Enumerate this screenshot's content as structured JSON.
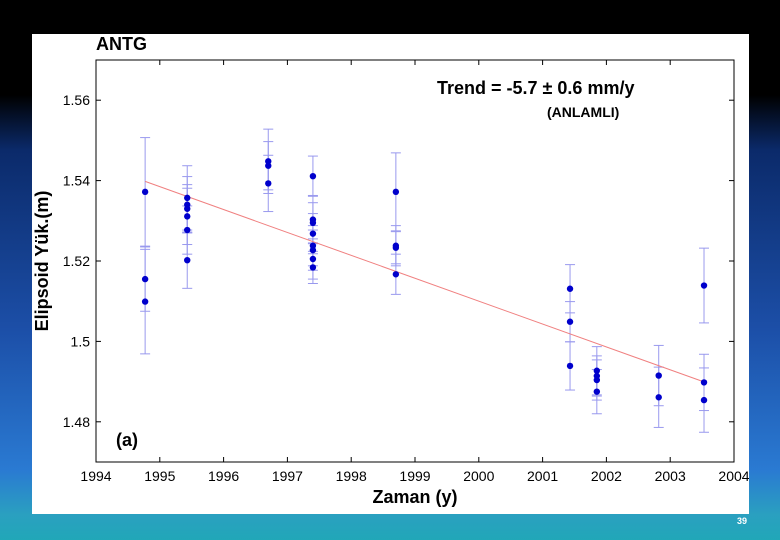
{
  "slide": {
    "page_number": "39",
    "colors": {
      "data_points": "#0000cc",
      "error_bars": "#9999ee",
      "trend_line": "#f08080",
      "axis": "#000000"
    }
  },
  "chart_data": {
    "type": "scatter",
    "title": "ANTG",
    "xlabel": "Zaman (y)",
    "ylabel": "Elipsoid Yük.(m)",
    "panel_label": "(a)",
    "annotation": "Trend = -5.7 ± 0.6 mm/y",
    "annotation_sub": "(ANLAMLI)",
    "xlim": [
      1994,
      2004
    ],
    "ylim": [
      1.47,
      1.57
    ],
    "xticks": [
      1994,
      1995,
      1996,
      1997,
      1998,
      1999,
      2000,
      2001,
      2002,
      2003,
      2004
    ],
    "xtick_labels": [
      "1994",
      "1995",
      "1996",
      "1997",
      "1998",
      "1999",
      "2000",
      "2001",
      "2002",
      "2003",
      "2004"
    ],
    "yticks": [
      1.48,
      1.5,
      1.52,
      1.54,
      1.56
    ],
    "ytick_labels": [
      "1.48",
      "1.5",
      "1.52",
      "1.54",
      "1.56"
    ],
    "trend_line": {
      "x": [
        1994.77,
        2003.55
      ],
      "y": [
        1.5398,
        1.4898
      ]
    },
    "series": [
      {
        "name": "ANTG",
        "points": [
          {
            "x": 1994.77,
            "y": 1.5372,
            "err": 0.0135
          },
          {
            "x": 1994.77,
            "y": 1.5155,
            "err": 0.008
          },
          {
            "x": 1994.77,
            "y": 1.5099,
            "err": 0.013
          },
          {
            "x": 1995.43,
            "y": 1.5357,
            "err": 0.008
          },
          {
            "x": 1995.43,
            "y": 1.534,
            "err": 0.007
          },
          {
            "x": 1995.43,
            "y": 1.533,
            "err": 0.006
          },
          {
            "x": 1995.43,
            "y": 1.5311,
            "err": 0.007
          },
          {
            "x": 1995.43,
            "y": 1.5277,
            "err": 0.006
          },
          {
            "x": 1995.43,
            "y": 1.5202,
            "err": 0.007
          },
          {
            "x": 1996.7,
            "y": 1.5448,
            "err": 0.008
          },
          {
            "x": 1996.7,
            "y": 1.5437,
            "err": 0.006
          },
          {
            "x": 1996.7,
            "y": 1.5393,
            "err": 0.007
          },
          {
            "x": 1997.4,
            "y": 1.5411,
            "err": 0.005
          },
          {
            "x": 1997.4,
            "y": 1.5303,
            "err": 0.006
          },
          {
            "x": 1997.4,
            "y": 1.5295,
            "err": 0.005
          },
          {
            "x": 1997.4,
            "y": 1.5268,
            "err": 0.005
          },
          {
            "x": 1997.4,
            "y": 1.5238,
            "err": 0.005
          },
          {
            "x": 1997.4,
            "y": 1.5227,
            "err": 0.005
          },
          {
            "x": 1997.4,
            "y": 1.5205,
            "err": 0.005
          },
          {
            "x": 1997.4,
            "y": 1.5184,
            "err": 0.004
          },
          {
            "x": 1998.7,
            "y": 1.5372,
            "err": 0.0097
          },
          {
            "x": 1998.7,
            "y": 1.5238,
            "err": 0.005
          },
          {
            "x": 1998.7,
            "y": 1.5233,
            "err": 0.004
          },
          {
            "x": 1998.7,
            "y": 1.5167,
            "err": 0.005
          },
          {
            "x": 2001.43,
            "y": 1.5131,
            "err": 0.006
          },
          {
            "x": 2001.43,
            "y": 1.5049,
            "err": 0.005
          },
          {
            "x": 2001.43,
            "y": 1.4939,
            "err": 0.006
          },
          {
            "x": 2001.85,
            "y": 1.4927,
            "err": 0.006
          },
          {
            "x": 2001.85,
            "y": 1.4914,
            "err": 0.005
          },
          {
            "x": 2001.85,
            "y": 1.4904,
            "err": 0.005
          },
          {
            "x": 2001.85,
            "y": 1.4875,
            "err": 0.0055
          },
          {
            "x": 2002.82,
            "y": 1.4915,
            "err": 0.0075
          },
          {
            "x": 2002.82,
            "y": 1.4861,
            "err": 0.0075
          },
          {
            "x": 2003.53,
            "y": 1.5139,
            "err": 0.0093
          },
          {
            "x": 2003.53,
            "y": 1.4898,
            "err": 0.007
          },
          {
            "x": 2003.53,
            "y": 1.4854,
            "err": 0.008
          }
        ]
      }
    ]
  }
}
